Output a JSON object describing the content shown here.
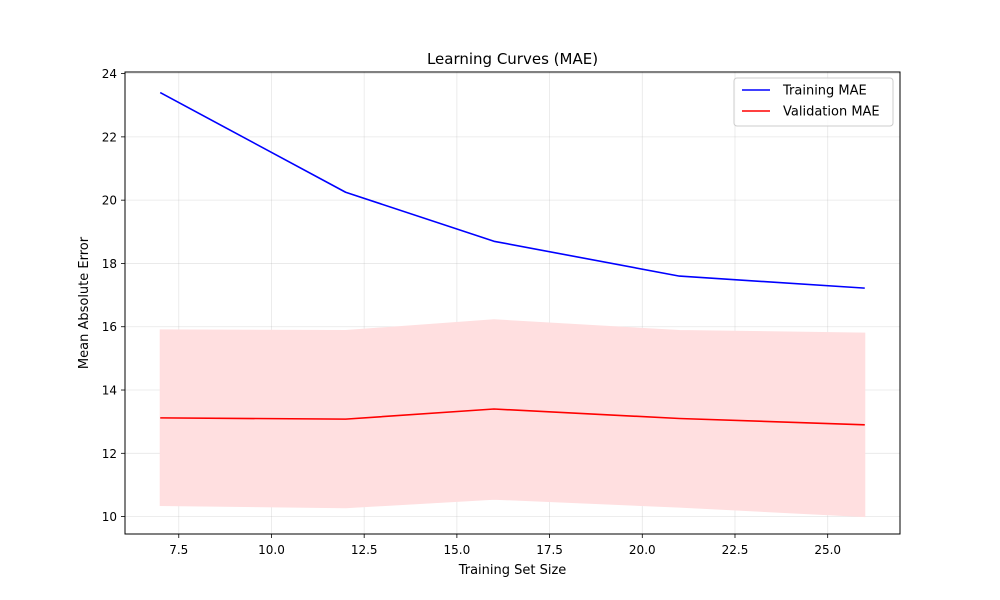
{
  "chart_data": {
    "type": "line",
    "title": "Learning Curves (MAE)",
    "xlabel": "Training Set Size",
    "ylabel": "Mean Absolute Error",
    "x": [
      7,
      12,
      16,
      21,
      26
    ],
    "xlim": [
      6.05,
      26.95
    ],
    "ylim": [
      9.45,
      24.05
    ],
    "xticks": [
      7.5,
      10.0,
      12.5,
      15.0,
      17.5,
      20.0,
      22.5,
      25.0
    ],
    "xtick_labels": [
      "7.5",
      "10.0",
      "12.5",
      "15.0",
      "17.5",
      "20.0",
      "22.5",
      "25.0"
    ],
    "yticks": [
      10,
      12,
      14,
      16,
      18,
      20,
      22,
      24
    ],
    "ytick_labels": [
      "10",
      "12",
      "14",
      "16",
      "18",
      "20",
      "22",
      "24"
    ],
    "grid": true,
    "legend_position": "upper right",
    "series": [
      {
        "name": "Training MAE",
        "color": "#0000ff",
        "values": [
          23.4,
          20.25,
          18.7,
          17.6,
          17.22
        ]
      },
      {
        "name": "Validation MAE",
        "color": "#ff0000",
        "values": [
          13.12,
          13.08,
          13.4,
          13.1,
          12.9
        ],
        "band": {
          "color": "#ffdfe0",
          "lower": [
            10.35,
            10.28,
            10.55,
            10.3,
            10.0
          ],
          "upper": [
            15.9,
            15.88,
            16.22,
            15.88,
            15.8
          ]
        }
      }
    ]
  }
}
